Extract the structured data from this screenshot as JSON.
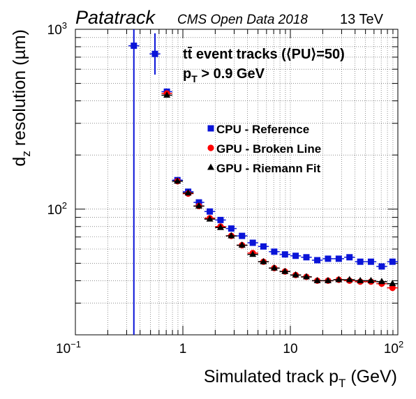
{
  "header": {
    "experiment": "Patatrack",
    "dataset": "CMS Open Data 2018",
    "energy": "13 TeV"
  },
  "annotation": {
    "line1": "tt̄ event tracks (⟨PU⟩=50)",
    "line2_main": "p",
    "line2_sub": "T",
    "line2_rest": " > 0.9 GeV"
  },
  "chart_data": {
    "type": "scatter",
    "title": "",
    "xlabel": "Simulated track p_T (GeV)",
    "ylabel": "d_z resolution (µm)",
    "xscale": "log",
    "yscale": "log",
    "xlim": [
      0.1,
      100
    ],
    "ylim": [
      20,
      1000
    ],
    "grid": true,
    "legend_position": "center-right",
    "x_ticks": [
      {
        "value": 0.1,
        "base": "10",
        "exp": "−1"
      },
      {
        "value": 1,
        "base": "1",
        "exp": ""
      },
      {
        "value": 10,
        "base": "10",
        "exp": ""
      },
      {
        "value": 100,
        "base": "10",
        "exp": "2"
      }
    ],
    "y_ticks": [
      {
        "value": 100,
        "base": "10",
        "exp": "2"
      },
      {
        "value": 1000,
        "base": "10",
        "exp": "3"
      }
    ],
    "series": [
      {
        "name": "CPU - Reference",
        "color": "#0a14d8",
        "marker": "square",
        "points": [
          {
            "x": 0.35,
            "y": 810,
            "ylo": 20,
            "yhi": 1000
          },
          {
            "x": 0.55,
            "y": 730,
            "ylo": 560,
            "yhi": 950
          },
          {
            "x": 0.71,
            "y": 450
          },
          {
            "x": 0.89,
            "y": 145
          },
          {
            "x": 1.12,
            "y": 125
          },
          {
            "x": 1.41,
            "y": 109
          },
          {
            "x": 1.78,
            "y": 97
          },
          {
            "x": 2.24,
            "y": 87
          },
          {
            "x": 2.82,
            "y": 78
          },
          {
            "x": 3.55,
            "y": 71
          },
          {
            "x": 4.47,
            "y": 65
          },
          {
            "x": 5.62,
            "y": 62
          },
          {
            "x": 7.08,
            "y": 58
          },
          {
            "x": 8.91,
            "y": 56
          },
          {
            "x": 11.2,
            "y": 55
          },
          {
            "x": 14.1,
            "y": 54
          },
          {
            "x": 17.8,
            "y": 52
          },
          {
            "x": 22.4,
            "y": 53
          },
          {
            "x": 28.2,
            "y": 53
          },
          {
            "x": 35.5,
            "y": 54
          },
          {
            "x": 44.7,
            "y": 51
          },
          {
            "x": 56.2,
            "y": 51
          },
          {
            "x": 70.8,
            "y": 48
          },
          {
            "x": 89.1,
            "y": 51
          }
        ]
      },
      {
        "name": "GPU - Broken Line",
        "color": "#ff0000",
        "marker": "circle",
        "points": [
          {
            "x": 0.71,
            "y": 440
          },
          {
            "x": 0.89,
            "y": 143
          },
          {
            "x": 1.12,
            "y": 122
          },
          {
            "x": 1.41,
            "y": 104
          },
          {
            "x": 1.78,
            "y": 89
          },
          {
            "x": 2.24,
            "y": 80
          },
          {
            "x": 2.82,
            "y": 71
          },
          {
            "x": 3.55,
            "y": 63
          },
          {
            "x": 4.47,
            "y": 57
          },
          {
            "x": 5.62,
            "y": 51
          },
          {
            "x": 7.08,
            "y": 47
          },
          {
            "x": 8.91,
            "y": 45
          },
          {
            "x": 11.2,
            "y": 43
          },
          {
            "x": 14.1,
            "y": 42
          },
          {
            "x": 17.8,
            "y": 40
          },
          {
            "x": 22.4,
            "y": 40
          },
          {
            "x": 28.2,
            "y": 40.5
          },
          {
            "x": 35.5,
            "y": 40
          },
          {
            "x": 44.7,
            "y": 39.5
          },
          {
            "x": 56.2,
            "y": 39.5
          },
          {
            "x": 70.8,
            "y": 38.5
          },
          {
            "x": 89.1,
            "y": 36.5
          }
        ]
      },
      {
        "name": "GPU - Riemann Fit",
        "color": "#000000",
        "marker": "triangle",
        "points": [
          {
            "x": 0.71,
            "y": 430
          },
          {
            "x": 0.89,
            "y": 143
          },
          {
            "x": 1.12,
            "y": 123
          },
          {
            "x": 1.41,
            "y": 104
          },
          {
            "x": 1.78,
            "y": 88
          },
          {
            "x": 2.24,
            "y": 79
          },
          {
            "x": 2.82,
            "y": 71
          },
          {
            "x": 3.55,
            "y": 63
          },
          {
            "x": 4.47,
            "y": 56
          },
          {
            "x": 5.62,
            "y": 51
          },
          {
            "x": 7.08,
            "y": 47
          },
          {
            "x": 8.91,
            "y": 45
          },
          {
            "x": 11.2,
            "y": 43
          },
          {
            "x": 14.1,
            "y": 42
          },
          {
            "x": 17.8,
            "y": 40
          },
          {
            "x": 22.4,
            "y": 40
          },
          {
            "x": 28.2,
            "y": 40.5
          },
          {
            "x": 35.5,
            "y": 40.5
          },
          {
            "x": 44.7,
            "y": 40
          },
          {
            "x": 56.2,
            "y": 40
          },
          {
            "x": 70.8,
            "y": 39.5
          },
          {
            "x": 89.1,
            "y": 38.5
          }
        ]
      }
    ]
  }
}
